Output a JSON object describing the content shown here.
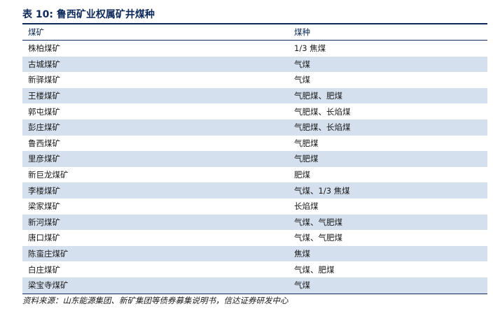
{
  "title": "表 10:  鲁西矿业权属矿井煤种",
  "table": {
    "headers": [
      "煤矿",
      "煤种"
    ],
    "rows": [
      [
        "株柏煤矿",
        "1/3 焦煤"
      ],
      [
        "古城煤矿",
        "气煤"
      ],
      [
        "新驿煤矿",
        "气煤"
      ],
      [
        "王楼煤矿",
        "气肥煤、肥煤"
      ],
      [
        "郭屯煤矿",
        "气肥煤、长焰煤"
      ],
      [
        "彭庄煤矿",
        "气肥煤、长焰煤"
      ],
      [
        "鲁西煤矿",
        "气肥煤"
      ],
      [
        "里彦煤矿",
        "气肥煤"
      ],
      [
        "新巨龙煤矿",
        "肥煤"
      ],
      [
        "李楼煤矿",
        "气煤、1/3 焦煤"
      ],
      [
        "梁家煤矿",
        "长焰煤"
      ],
      [
        "新河煤矿",
        "气煤、气肥煤"
      ],
      [
        "唐口煤矿",
        "气煤、气肥煤"
      ],
      [
        "陈蛮庄煤矿",
        "焦煤"
      ],
      [
        "白庄煤矿",
        "气煤、肥煤"
      ],
      [
        "梁宝寺煤矿",
        "气煤"
      ]
    ]
  },
  "source": "资料来源：山东能源集团、新矿集团等债券募集说明书，信达证券研发中心",
  "colors": {
    "header_text": "#0e2a5a",
    "rule": "#0e2a5a",
    "alt_row": "#d5e0ee"
  }
}
